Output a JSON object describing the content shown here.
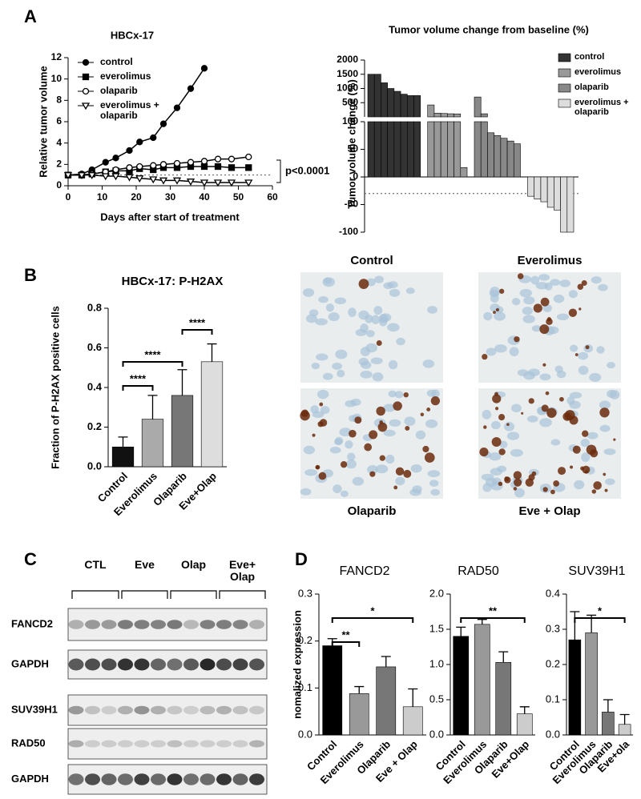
{
  "panel_labels": [
    "A",
    "B",
    "C",
    "D"
  ],
  "chart_data": [
    {
      "type": "line",
      "title": "HBCx-17",
      "x_label": "Days after start of treatment",
      "y_label": "Relative tumor volume",
      "x": [
        0,
        4,
        7,
        11,
        14,
        18,
        21,
        25,
        28,
        32,
        36,
        40,
        44,
        48,
        53
      ],
      "xlim": [
        0,
        60
      ],
      "xticks": [
        0,
        10,
        20,
        30,
        40,
        50,
        60
      ],
      "ylim": [
        0,
        12
      ],
      "yticks": [
        0,
        2,
        4,
        6,
        8,
        10,
        12
      ],
      "reference_line": 1,
      "annotation": "p<0.0001",
      "series": [
        {
          "name": "control",
          "color": "#000000",
          "marker": "circle-filled",
          "values": [
            1,
            1.1,
            1.5,
            2.2,
            2.6,
            3.3,
            4.1,
            4.5,
            5.8,
            7.3,
            9.1,
            11.0,
            null,
            null,
            null
          ]
        },
        {
          "name": "everolimus",
          "color": "#000000",
          "marker": "square-filled",
          "values": [
            1,
            1,
            1.1,
            1.3,
            1.4,
            1.4,
            1.6,
            1.5,
            1.7,
            1.7,
            1.8,
            1.8,
            1.8,
            1.7,
            1.7
          ]
        },
        {
          "name": "olaparib",
          "color": "#000000",
          "marker": "circle-open",
          "values": [
            1,
            1,
            1.1,
            1.3,
            1.5,
            1.7,
            1.8,
            1.9,
            2.0,
            2.1,
            2.2,
            2.3,
            2.5,
            2.5,
            2.7
          ]
        },
        {
          "name": "everolimus + olaparib",
          "color": "#000000",
          "marker": "triangle-open",
          "values": [
            1,
            1,
            1,
            0.9,
            0.9,
            0.8,
            0.7,
            0.6,
            0.5,
            0.5,
            0.4,
            0.3,
            0.3,
            0.3,
            0.3
          ]
        }
      ]
    },
    {
      "type": "waterfall",
      "title": "Tumor volume change from baseline (%)",
      "y_label": "Tumor volume change (%)",
      "ylim": [
        -100,
        100
      ],
      "yticks": [
        -100,
        -50,
        0,
        50,
        100
      ],
      "y_upper_lim": [
        0,
        2000
      ],
      "y_upper_ticks": [
        500,
        1000,
        1500,
        2000
      ],
      "reference_line": -30,
      "series": [
        {
          "name": "control",
          "color": "#333333",
          "values": [
            1500,
            1500,
            1200,
            1000,
            900,
            800,
            750,
            750
          ]
        },
        {
          "name": "everolimus",
          "color": "#999999",
          "values": [
            420,
            130,
            120,
            110,
            105,
            17
          ]
        },
        {
          "name": "olaparib",
          "color": "#888888",
          "values": [
            700,
            110,
            80,
            75,
            70,
            65,
            60
          ]
        },
        {
          "name": "everolimus + olaparib",
          "color": "#dddddd",
          "values": [
            -35,
            -40,
            -45,
            -55,
            -60,
            -100,
            -100
          ]
        }
      ]
    },
    {
      "type": "bar",
      "title": "HBCx-17: P-H2AX",
      "y_label": "Fraction of P-H2AX positive cells",
      "categories": [
        "Control",
        "Everolimus",
        "Olaparib",
        "Eve+Olap"
      ],
      "values": [
        0.1,
        0.24,
        0.36,
        0.53
      ],
      "errors": [
        0.05,
        0.12,
        0.13,
        0.09
      ],
      "colors": [
        "#111111",
        "#aaaaaa",
        "#777777",
        "#dddddd"
      ],
      "ylim": [
        0,
        0.8
      ],
      "yticks": [
        {
          "value": 0,
          "label": "0.0"
        },
        0.2,
        0.4,
        0.6,
        0.8
      ],
      "annotations": [
        "****",
        "****",
        "****"
      ]
    },
    {
      "type": "bar",
      "title": "FANCD2",
      "y_label": "nomalized expression",
      "categories": [
        "Control",
        "Everolimus",
        "Olaparib",
        "Eve + Olap"
      ],
      "values": [
        0.19,
        0.088,
        0.145,
        0.06
      ],
      "errors": [
        0.015,
        0.015,
        0.022,
        0.038
      ],
      "colors": [
        "#000000",
        "#999999",
        "#777777",
        "#cccccc"
      ],
      "ylim": [
        0,
        0.3
      ],
      "yticks": [
        {
          "value": 0,
          "label": "0.0"
        },
        0.1,
        0.2,
        0.3
      ],
      "annotations": [
        "**",
        "*"
      ]
    },
    {
      "type": "bar",
      "title": "RAD50",
      "categories": [
        "Control",
        "Everolimus",
        "Olaparib",
        "Eve+Olap"
      ],
      "values": [
        1.4,
        1.57,
        1.03,
        0.3
      ],
      "errors": [
        0.13,
        0.07,
        0.15,
        0.1
      ],
      "colors": [
        "#000000",
        "#999999",
        "#777777",
        "#cccccc"
      ],
      "ylim": [
        0,
        2
      ],
      "yticks": [
        {
          "value": 0,
          "label": "0.0"
        },
        0.5,
        {
          "value": 1,
          "label": "1.0"
        },
        1.5,
        {
          "value": 2,
          "label": "2.0"
        }
      ],
      "annotations": [
        "**"
      ]
    },
    {
      "type": "bar",
      "title": "SUV39H1",
      "categories": [
        "Control",
        "Everolimus",
        "Olaparib",
        "Eve+ola"
      ],
      "values": [
        0.27,
        0.29,
        0.065,
        0.03
      ],
      "errors": [
        0.08,
        0.05,
        0.035,
        0.028
      ],
      "colors": [
        "#000000",
        "#999999",
        "#777777",
        "#cccccc"
      ],
      "ylim": [
        0,
        0.4
      ],
      "yticks": [
        {
          "value": 0,
          "label": "0.0"
        },
        0.1,
        0.2,
        0.3,
        0.4
      ],
      "annotations": [
        "*"
      ]
    }
  ],
  "micrographs": {
    "labels": [
      "Control",
      "Everolimus",
      "Olaparib",
      "Eve + Olap"
    ]
  },
  "western_blot": {
    "groups": [
      "CTL",
      "Eve",
      "Olap",
      "Eve+ Olap"
    ],
    "rows": [
      "FANCD2",
      "GAPDH",
      "SUV39H1",
      "RAD50",
      "GAPDH"
    ]
  }
}
